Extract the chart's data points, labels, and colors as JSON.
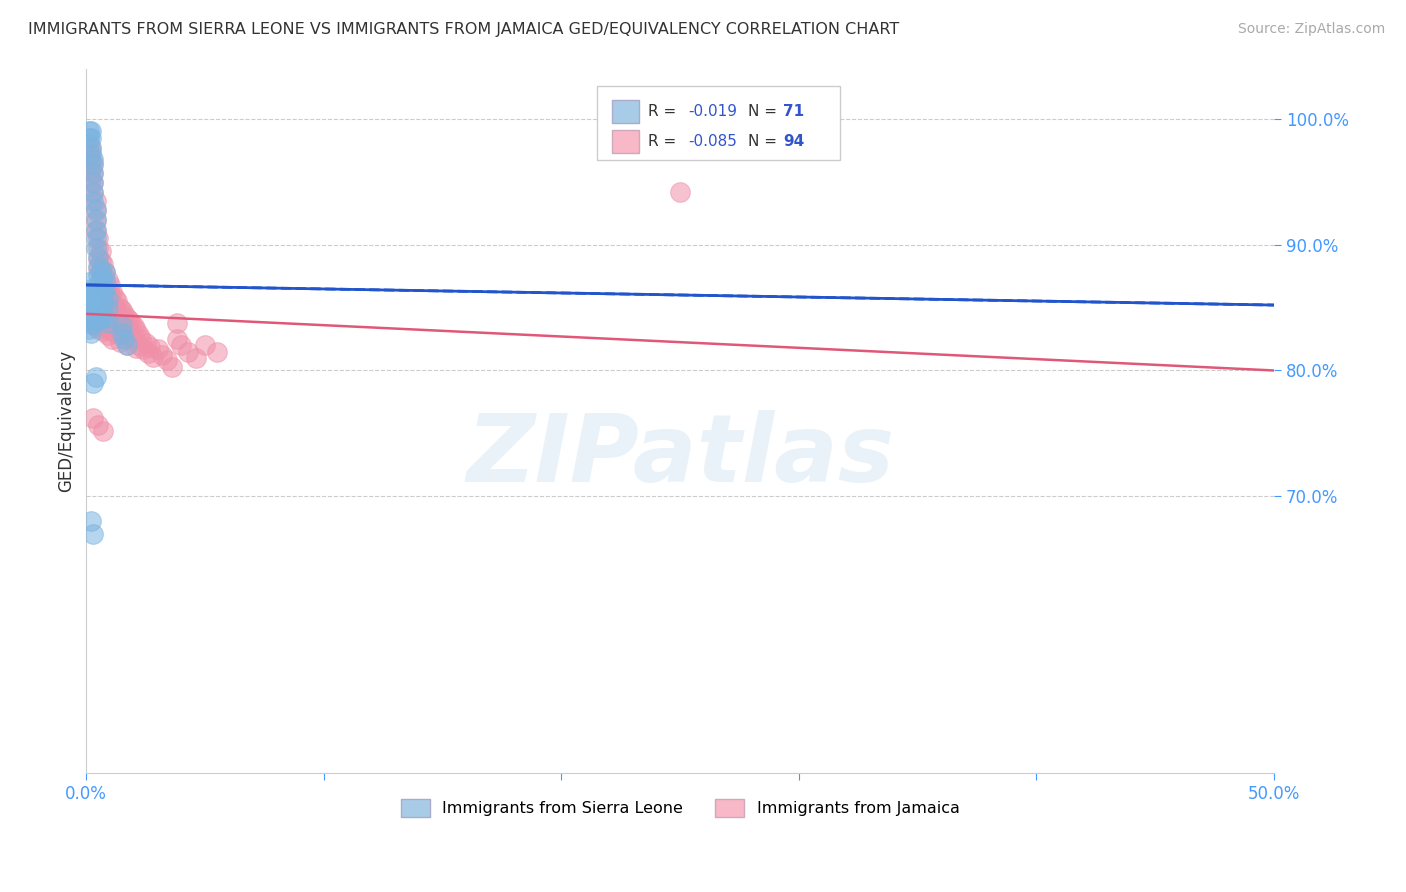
{
  "title": "IMMIGRANTS FROM SIERRA LEONE VS IMMIGRANTS FROM JAMAICA GED/EQUIVALENCY CORRELATION CHART",
  "source": "Source: ZipAtlas.com",
  "ylabel": "GED/Equivalency",
  "sierra_leone_color": "#7ab4e0",
  "jamaica_color": "#f090a8",
  "sierra_leone_line_color": "#2255cc",
  "jamaica_line_color": "#e05878",
  "watermark": "ZIPatlas",
  "background_color": "#ffffff",
  "legend_sl_color": "#a8cce8",
  "legend_jam_color": "#f8b8c8",
  "xlim": [
    0.0,
    0.5
  ],
  "ylim": [
    0.48,
    1.04
  ],
  "yticks": [
    0.7,
    0.8,
    0.9,
    1.0
  ],
  "ytick_labels": [
    "70.0%",
    "80.0%",
    "90.0%",
    "100.0%"
  ],
  "xtick_positions": [
    0.0,
    0.1,
    0.2,
    0.3,
    0.4,
    0.5
  ],
  "sierra_leone_x": [
    0.001,
    0.001,
    0.002,
    0.002,
    0.002,
    0.002,
    0.003,
    0.003,
    0.003,
    0.003,
    0.003,
    0.003,
    0.004,
    0.004,
    0.004,
    0.004,
    0.004,
    0.005,
    0.005,
    0.005,
    0.005,
    0.006,
    0.006,
    0.006,
    0.006,
    0.007,
    0.007,
    0.007,
    0.008,
    0.008,
    0.008,
    0.009,
    0.009,
    0.001,
    0.001,
    0.001,
    0.002,
    0.002,
    0.002,
    0.002,
    0.002,
    0.003,
    0.003,
    0.003,
    0.003,
    0.003,
    0.004,
    0.004,
    0.004,
    0.005,
    0.005,
    0.006,
    0.006,
    0.007,
    0.008,
    0.009,
    0.001,
    0.001,
    0.002,
    0.002,
    0.003,
    0.004,
    0.004,
    0.015,
    0.015,
    0.016,
    0.017,
    0.002,
    0.003,
    0.004,
    0.003
  ],
  "sierra_leone_y": [
    0.99,
    0.985,
    0.99,
    0.985,
    0.978,
    0.972,
    0.968,
    0.963,
    0.957,
    0.95,
    0.942,
    0.935,
    0.928,
    0.92,
    0.912,
    0.905,
    0.897,
    0.89,
    0.883,
    0.876,
    0.869,
    0.88,
    0.873,
    0.866,
    0.859,
    0.87,
    0.863,
    0.856,
    0.878,
    0.871,
    0.864,
    0.857,
    0.85,
    0.87,
    0.862,
    0.854,
    0.86,
    0.853,
    0.846,
    0.865,
    0.858,
    0.855,
    0.848,
    0.841,
    0.862,
    0.855,
    0.858,
    0.851,
    0.844,
    0.852,
    0.845,
    0.848,
    0.841,
    0.845,
    0.842,
    0.838,
    0.84,
    0.833,
    0.837,
    0.83,
    0.843,
    0.846,
    0.839,
    0.835,
    0.83,
    0.825,
    0.82,
    0.68,
    0.67,
    0.795,
    0.79
  ],
  "jamaica_x": [
    0.001,
    0.001,
    0.001,
    0.002,
    0.002,
    0.002,
    0.002,
    0.003,
    0.003,
    0.003,
    0.003,
    0.004,
    0.004,
    0.004,
    0.004,
    0.005,
    0.005,
    0.005,
    0.005,
    0.006,
    0.006,
    0.006,
    0.007,
    0.007,
    0.007,
    0.008,
    0.008,
    0.008,
    0.009,
    0.009,
    0.009,
    0.01,
    0.01,
    0.01,
    0.011,
    0.011,
    0.012,
    0.012,
    0.013,
    0.013,
    0.014,
    0.014,
    0.015,
    0.015,
    0.016,
    0.016,
    0.017,
    0.017,
    0.018,
    0.018,
    0.019,
    0.02,
    0.02,
    0.021,
    0.022,
    0.022,
    0.023,
    0.024,
    0.025,
    0.026,
    0.027,
    0.028,
    0.03,
    0.032,
    0.034,
    0.036,
    0.038,
    0.04,
    0.043,
    0.046,
    0.05,
    0.055,
    0.001,
    0.002,
    0.003,
    0.004,
    0.004,
    0.005,
    0.006,
    0.007,
    0.008,
    0.009,
    0.01,
    0.011,
    0.012,
    0.014,
    0.015,
    0.017,
    0.019,
    0.021,
    0.038,
    0.25,
    0.003,
    0.005,
    0.007
  ],
  "jamaica_y": [
    0.98,
    0.972,
    0.964,
    0.975,
    0.967,
    0.959,
    0.951,
    0.965,
    0.957,
    0.949,
    0.941,
    0.935,
    0.927,
    0.919,
    0.911,
    0.905,
    0.897,
    0.889,
    0.881,
    0.895,
    0.887,
    0.879,
    0.885,
    0.877,
    0.869,
    0.878,
    0.87,
    0.862,
    0.872,
    0.864,
    0.856,
    0.868,
    0.86,
    0.852,
    0.862,
    0.854,
    0.858,
    0.85,
    0.855,
    0.847,
    0.85,
    0.842,
    0.848,
    0.84,
    0.845,
    0.837,
    0.842,
    0.834,
    0.84,
    0.832,
    0.838,
    0.835,
    0.827,
    0.832,
    0.828,
    0.82,
    0.825,
    0.817,
    0.822,
    0.814,
    0.819,
    0.811,
    0.817,
    0.812,
    0.808,
    0.803,
    0.825,
    0.82,
    0.815,
    0.81,
    0.82,
    0.815,
    0.845,
    0.838,
    0.84,
    0.835,
    0.84,
    0.833,
    0.838,
    0.831,
    0.835,
    0.828,
    0.832,
    0.825,
    0.83,
    0.823,
    0.828,
    0.82,
    0.825,
    0.818,
    0.838,
    0.942,
    0.762,
    0.757,
    0.752
  ],
  "sl_line_x0": 0.0,
  "sl_line_x1": 0.5,
  "sl_line_y0": 0.868,
  "sl_line_y1": 0.852,
  "jam_line_x0": 0.0,
  "jam_line_x1": 0.5,
  "jam_line_y0": 0.845,
  "jam_line_y1": 0.8
}
